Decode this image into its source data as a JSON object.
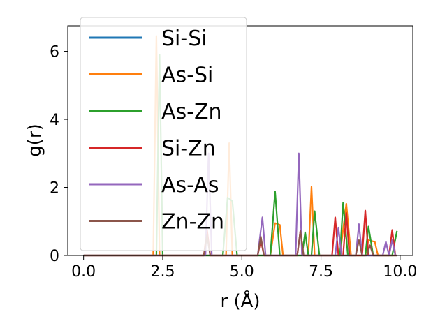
{
  "chart_data": {
    "type": "line",
    "xlabel": "r (Å)",
    "ylabel": "g(r)",
    "xlim": [
      -0.5,
      10.4
    ],
    "ylim": [
      0,
      6.75
    ],
    "xticks": [
      0.0,
      2.5,
      5.0,
      7.5,
      10.0
    ],
    "xtick_labels": [
      "0.0",
      "2.5",
      "5.0",
      "7.5",
      "10.0"
    ],
    "yticks": [
      0,
      2,
      4,
      6
    ],
    "ytick_labels": [
      "0",
      "2",
      "4",
      "6"
    ],
    "grid": false,
    "legend_position": "top-left",
    "series": [
      {
        "name": "Si-Si",
        "color": "#1f77b4",
        "points": [
          [
            0,
            0
          ],
          [
            9.9,
            0
          ]
        ]
      },
      {
        "name": "As-Si",
        "color": "#ff7f0e",
        "points": [
          [
            0,
            0
          ],
          [
            2.2,
            0
          ],
          [
            2.3,
            6.45
          ],
          [
            2.4,
            0
          ],
          [
            4.5,
            0
          ],
          [
            4.6,
            3.3
          ],
          [
            4.7,
            0
          ],
          [
            5.9,
            0
          ],
          [
            6.05,
            0.95
          ],
          [
            6.2,
            0.9
          ],
          [
            6.3,
            0
          ],
          [
            7.1,
            0
          ],
          [
            7.2,
            2.02
          ],
          [
            7.3,
            0
          ],
          [
            8.1,
            0
          ],
          [
            8.3,
            1.52
          ],
          [
            8.45,
            0
          ],
          [
            8.9,
            0
          ],
          [
            9.0,
            0.45
          ],
          [
            9.2,
            0.4
          ],
          [
            9.3,
            0
          ],
          [
            9.9,
            0
          ]
        ]
      },
      {
        "name": "As-Zn",
        "color": "#2ca02c",
        "points": [
          [
            0,
            0
          ],
          [
            2.3,
            0
          ],
          [
            2.4,
            5.9
          ],
          [
            2.5,
            0
          ],
          [
            4.4,
            0
          ],
          [
            4.55,
            1.7
          ],
          [
            4.7,
            1.6
          ],
          [
            4.85,
            0
          ],
          [
            5.9,
            0
          ],
          [
            6.05,
            1.88
          ],
          [
            6.2,
            0
          ],
          [
            6.9,
            0
          ],
          [
            7.0,
            0.68
          ],
          [
            7.1,
            0
          ],
          [
            7.2,
            0
          ],
          [
            7.3,
            1.3
          ],
          [
            7.45,
            0
          ],
          [
            8.1,
            0
          ],
          [
            8.2,
            1.55
          ],
          [
            8.35,
            0
          ],
          [
            8.9,
            0
          ],
          [
            9.0,
            0.85
          ],
          [
            9.15,
            0
          ],
          [
            9.75,
            0
          ],
          [
            9.9,
            0.72
          ]
        ]
      },
      {
        "name": "Si-Zn",
        "color": "#d62728",
        "points": [
          [
            0,
            0
          ],
          [
            3.8,
            0
          ],
          [
            3.9,
            0.75
          ],
          [
            4.0,
            0
          ],
          [
            5.5,
            0
          ],
          [
            5.6,
            0.45
          ],
          [
            5.7,
            0
          ],
          [
            6.75,
            0
          ],
          [
            6.85,
            0.72
          ],
          [
            6.95,
            0
          ],
          [
            7.85,
            0
          ],
          [
            7.95,
            1.12
          ],
          [
            8.05,
            0
          ],
          [
            8.2,
            0
          ],
          [
            8.3,
            1.25
          ],
          [
            8.4,
            0
          ],
          [
            8.8,
            0
          ],
          [
            8.9,
            1.32
          ],
          [
            9.0,
            0
          ],
          [
            9.65,
            0
          ],
          [
            9.75,
            0.75
          ],
          [
            9.85,
            0
          ]
        ]
      },
      {
        "name": "As-As",
        "color": "#9467bd",
        "points": [
          [
            0,
            0
          ],
          [
            3.85,
            0
          ],
          [
            3.95,
            3.0
          ],
          [
            4.05,
            0
          ],
          [
            5.5,
            0
          ],
          [
            5.65,
            1.12
          ],
          [
            5.75,
            0
          ],
          [
            6.7,
            0
          ],
          [
            6.8,
            3.0
          ],
          [
            6.9,
            0
          ],
          [
            7.95,
            0
          ],
          [
            8.05,
            0.82
          ],
          [
            8.15,
            0
          ],
          [
            8.6,
            0
          ],
          [
            8.7,
            0.92
          ],
          [
            8.8,
            0
          ],
          [
            9.45,
            0
          ],
          [
            9.55,
            0.4
          ],
          [
            9.65,
            0
          ],
          [
            9.75,
            0.45
          ],
          [
            9.85,
            0
          ]
        ]
      },
      {
        "name": "Zn-Zn",
        "color": "#8c564b",
        "points": [
          [
            0,
            0
          ],
          [
            3.8,
            0
          ],
          [
            3.9,
            0.6
          ],
          [
            4.0,
            0
          ],
          [
            5.5,
            0
          ],
          [
            5.6,
            0.55
          ],
          [
            5.7,
            0
          ],
          [
            6.75,
            0
          ],
          [
            6.85,
            0.72
          ],
          [
            6.95,
            0
          ],
          [
            8.6,
            0
          ],
          [
            8.7,
            0.45
          ],
          [
            8.8,
            0
          ],
          [
            8.95,
            0
          ],
          [
            9.05,
            0.3
          ],
          [
            9.15,
            0
          ],
          [
            9.9,
            0
          ]
        ]
      }
    ]
  }
}
